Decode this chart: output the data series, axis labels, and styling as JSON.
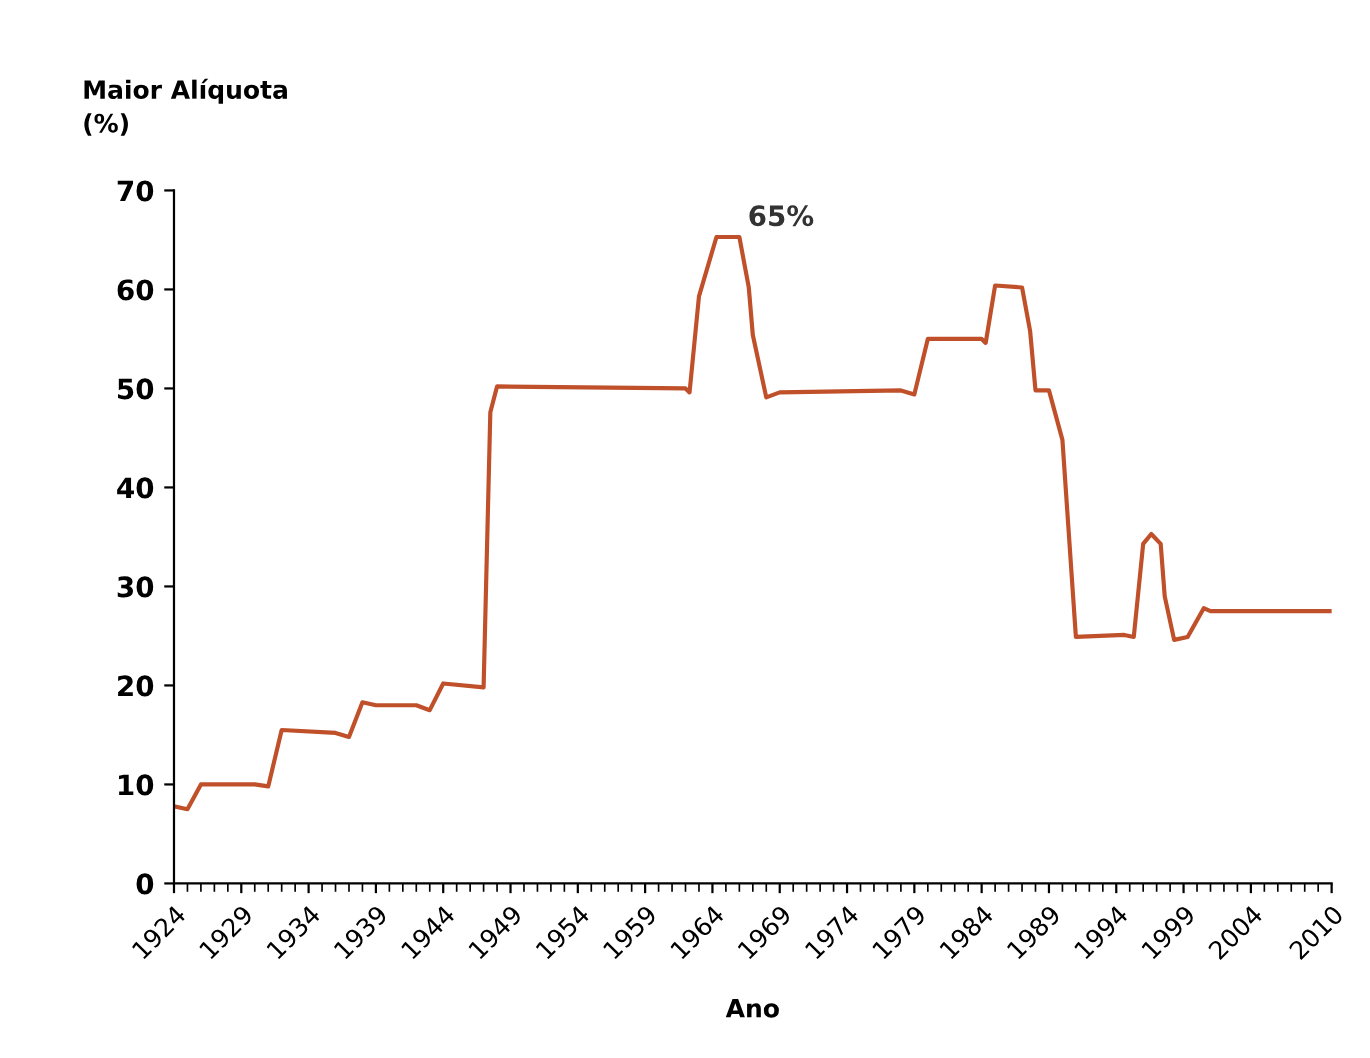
{
  "chart_data": {
    "type": "line",
    "ylabel": "Maior Alíquota\n(%)",
    "xlabel": "Ano",
    "x": [
      1924,
      1925,
      1926,
      1930,
      1931,
      1932,
      1936,
      1937,
      1938,
      1939,
      1942,
      1943,
      1944,
      1947,
      1947.5,
      1948,
      1962,
      1962.3,
      1963,
      1964.3,
      1966,
      1966.7,
      1967,
      1968,
      1969,
      1978,
      1979,
      1980,
      1984,
      1984.3,
      1985,
      1987,
      1987.6,
      1988,
      1989,
      1990,
      1991,
      1994.6,
      1995.3,
      1996,
      1996.6,
      1997.3,
      1997.6,
      1998.3,
      1999.3,
      2000.5,
      2001,
      2010
    ],
    "series": [
      {
        "color": "#c0502a",
        "values": [
          7.8,
          7.5,
          10,
          10,
          9.8,
          15.5,
          15.2,
          14.8,
          18.3,
          18,
          18,
          17.5,
          20.2,
          19.8,
          47.6,
          50.2,
          50,
          49.6,
          59.3,
          65.3,
          65.3,
          60.2,
          55.4,
          49.1,
          49.6,
          49.8,
          49.4,
          55,
          55,
          54.6,
          60.4,
          60.2,
          55.8,
          49.8,
          49.8,
          44.8,
          24.9,
          25.1,
          24.9,
          34.3,
          35.3,
          34.3,
          29,
          24.6,
          24.9,
          27.8,
          27.5,
          27.5
        ]
      }
    ],
    "xlim": [
      1924,
      2010
    ],
    "xticks": [
      1924,
      1929,
      1934,
      1939,
      1944,
      1949,
      1954,
      1959,
      1964,
      1969,
      1974,
      1979,
      1984,
      1989,
      1994,
      1999,
      2004,
      2010
    ],
    "ylim": [
      0,
      70
    ],
    "yticks": [
      0,
      10,
      20,
      30,
      40,
      50,
      60,
      70
    ],
    "grid": false,
    "legend": false,
    "annotations": [
      {
        "text": "65%",
        "x": 1966,
        "y": 65.3
      }
    ]
  }
}
